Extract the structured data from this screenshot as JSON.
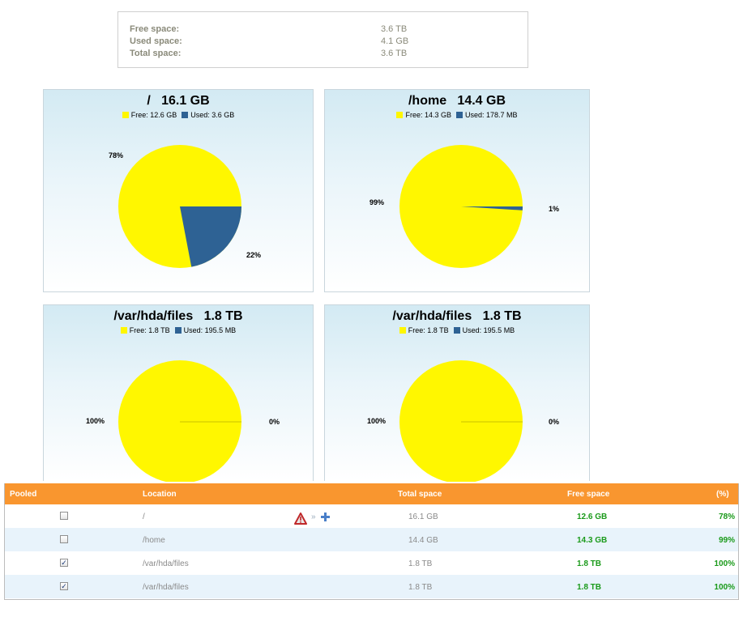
{
  "summary": {
    "free_label": "Free space:",
    "free_value": "3.6 TB",
    "used_label": "Used space:",
    "used_value": "4.1 GB",
    "total_label": "Total space:",
    "total_value": "3.6 TB"
  },
  "colors": {
    "free": "#fff700",
    "used": "#2e6294",
    "header": "#f9962f",
    "green": "#1a9a1a"
  },
  "chart_data": [
    {
      "type": "pie",
      "title": "/   16.1 GB",
      "legend": [
        "Free: 12.6 GB",
        "Used: 3.6 GB"
      ],
      "slices": [
        {
          "label": "Free",
          "value": 78
        },
        {
          "label": "Used",
          "value": 22
        }
      ],
      "labels": [
        "78%",
        "22%"
      ]
    },
    {
      "type": "pie",
      "title": "/home   14.4 GB",
      "legend": [
        "Free: 14.3 GB",
        "Used: 178.7 MB"
      ],
      "slices": [
        {
          "label": "Free",
          "value": 99
        },
        {
          "label": "Used",
          "value": 1
        }
      ],
      "labels": [
        "99%",
        "1%"
      ]
    },
    {
      "type": "pie",
      "title": "/var/hda/files   1.8 TB",
      "legend": [
        "Free: 1.8 TB",
        "Used: 195.5 MB"
      ],
      "slices": [
        {
          "label": "Free",
          "value": 100
        },
        {
          "label": "Used",
          "value": 0
        }
      ],
      "labels": [
        "100%",
        "0%"
      ]
    },
    {
      "type": "pie",
      "title": "/var/hda/files   1.8 TB",
      "legend": [
        "Free: 1.8 TB",
        "Used: 195.5 MB"
      ],
      "slices": [
        {
          "label": "Free",
          "value": 100
        },
        {
          "label": "Used",
          "value": 0
        }
      ],
      "labels": [
        "100%",
        "0%"
      ]
    }
  ],
  "table": {
    "headers": {
      "pooled": "Pooled",
      "location": "Location",
      "total": "Total space",
      "free": "Free space",
      "pct": "(%)"
    },
    "rows": [
      {
        "pooled": false,
        "location": "/",
        "total": "16.1 GB",
        "free": "12.6 GB",
        "pct": "78%",
        "icons": [
          "warning-icon",
          "arrow-icon",
          "plus-icon"
        ]
      },
      {
        "pooled": false,
        "location": "/home",
        "total": "14.4 GB",
        "free": "14.3 GB",
        "pct": "99%"
      },
      {
        "pooled": true,
        "location": "/var/hda/files",
        "total": "1.8 TB",
        "free": "1.8 TB",
        "pct": "100%"
      },
      {
        "pooled": true,
        "location": "/var/hda/files",
        "total": "1.8 TB",
        "free": "1.8 TB",
        "pct": "100%"
      }
    ]
  }
}
